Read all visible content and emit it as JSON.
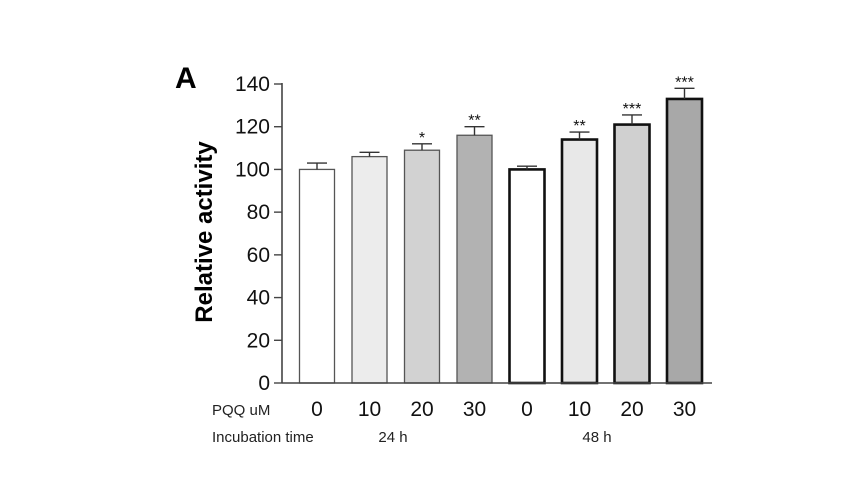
{
  "chart_data": {
    "type": "bar",
    "panel_label": "A",
    "title": "",
    "ylabel": "Relative activity",
    "ylim": [
      0,
      140
    ],
    "yticks": [
      0,
      20,
      40,
      60,
      80,
      100,
      120,
      140
    ],
    "grid": false,
    "legend": "none",
    "category_rows": [
      {
        "label": "PQQ uM",
        "values": [
          "0",
          "10",
          "20",
          "30",
          "0",
          "10",
          "20",
          "30"
        ]
      }
    ],
    "group_row": {
      "label": "Incubation time",
      "groups": [
        {
          "label": "24 h",
          "span": [
            0,
            3
          ]
        },
        {
          "label": "48 h",
          "span": [
            4,
            7
          ]
        }
      ]
    },
    "bars": [
      {
        "group": "24 h",
        "pqq": "0",
        "value": 100,
        "error": 3,
        "significance": "",
        "fill": "#ffffff",
        "stroke": "#555555"
      },
      {
        "group": "24 h",
        "pqq": "10",
        "value": 106,
        "error": 2,
        "significance": "",
        "fill": "#ececec",
        "stroke": "#555555"
      },
      {
        "group": "24 h",
        "pqq": "20",
        "value": 109,
        "error": 3,
        "significance": "*",
        "fill": "#d2d2d2",
        "stroke": "#555555"
      },
      {
        "group": "24 h",
        "pqq": "30",
        "value": 116,
        "error": 4,
        "significance": "**",
        "fill": "#b2b2b2",
        "stroke": "#555555"
      },
      {
        "group": "48 h",
        "pqq": "0",
        "value": 100,
        "error": 1.5,
        "significance": "",
        "fill": "#ffffff",
        "stroke": "#111111"
      },
      {
        "group": "48 h",
        "pqq": "10",
        "value": 114,
        "error": 3.5,
        "significance": "**",
        "fill": "#e8e8e8",
        "stroke": "#111111"
      },
      {
        "group": "48 h",
        "pqq": "20",
        "value": 121,
        "error": 4.5,
        "significance": "***",
        "fill": "#d0d0d0",
        "stroke": "#111111"
      },
      {
        "group": "48 h",
        "pqq": "30",
        "value": 133,
        "error": 5,
        "significance": "***",
        "fill": "#a8a8a8",
        "stroke": "#111111"
      }
    ]
  }
}
